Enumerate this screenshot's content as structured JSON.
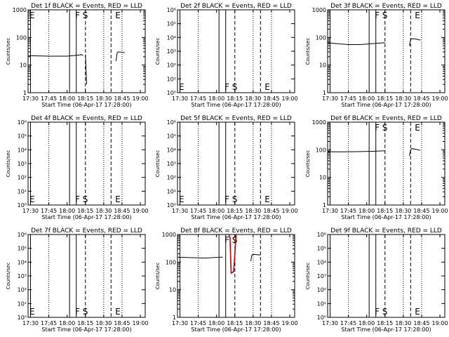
{
  "figure": {
    "x_tick_labels": [
      "17:30",
      "17:45",
      "18:00",
      "18:15",
      "18:30",
      "18:45",
      "19:00"
    ],
    "xlabel": "Start Time (06-Apr-17 17:28:00)",
    "ylabel": "Counts/sec",
    "log_ticks_a": [
      "1",
      "10",
      "100",
      "1000"
    ],
    "log_ticks_b": [
      "10⁰",
      "10¹",
      "10²",
      "10³",
      "10⁴",
      "10⁵",
      "10⁶"
    ],
    "marker_labels": [
      "E",
      "F",
      "S",
      "E"
    ],
    "colors": {
      "events": "#000000",
      "lld": "#cc0000"
    }
  },
  "chart_data": [
    {
      "title": "Det 1f BLACK = Events, RED = LLD",
      "type": "line",
      "x_range": [
        "17:30",
        "19:00"
      ],
      "yscale": "log",
      "ylim": [
        1,
        1000
      ],
      "marker_labels_shown": [
        "E",
        "F",
        "S",
        "E"
      ],
      "series": [
        {
          "name": "Events",
          "color": "#000000",
          "x": [
            "17:28",
            "17:45",
            "18:00",
            "18:05",
            "18:10",
            "18:12",
            "18:13"
          ],
          "values": [
            22,
            21,
            21,
            22,
            23,
            24,
            22
          ]
        },
        {
          "name": "Events",
          "color": "#000000",
          "x": [
            "18:15",
            "18:16"
          ],
          "values": [
            24,
            2
          ]
        },
        {
          "name": "Events",
          "color": "#000000",
          "x": [
            "18:40",
            "18:41",
            "18:42",
            "18:45",
            "18:47"
          ],
          "values": [
            14,
            28,
            30,
            29,
            28
          ]
        }
      ]
    },
    {
      "title": "Det 2f BLACK = Events, RED = LLD",
      "type": "line",
      "x_range": [
        "17:30",
        "19:00"
      ],
      "yscale": "log",
      "ylim": [
        1,
        1000000
      ],
      "marker_labels_shown": [
        "E",
        "F",
        "S",
        "E"
      ],
      "series": []
    },
    {
      "title": "Det 3f BLACK = Events, RED = LLD",
      "type": "line",
      "x_range": [
        "17:30",
        "19:00"
      ],
      "yscale": "log",
      "ylim": [
        1,
        1000
      ],
      "marker_labels_shown": [
        "F",
        "S",
        "E"
      ],
      "series": [
        {
          "name": "Events",
          "color": "#000000",
          "x": [
            "17:28",
            "17:35",
            "17:45",
            "17:55",
            "18:05",
            "18:15"
          ],
          "values": [
            65,
            60,
            55,
            55,
            60,
            65
          ]
        },
        {
          "name": "Events",
          "color": "#000000",
          "x": [
            "18:35",
            "18:36",
            "18:37",
            "18:40",
            "18:44"
          ],
          "values": [
            50,
            85,
            90,
            88,
            80
          ]
        }
      ]
    },
    {
      "title": "Det 4f BLACK = Events, RED = LLD",
      "type": "line",
      "x_range": [
        "17:30",
        "19:00"
      ],
      "yscale": "log",
      "ylim": [
        1,
        1000000
      ],
      "marker_labels_shown": [
        "E",
        "F",
        "S",
        "E"
      ],
      "series": []
    },
    {
      "title": "Det 5f BLACK = Events, RED = LLD",
      "type": "line",
      "x_range": [
        "17:30",
        "19:00"
      ],
      "yscale": "log",
      "ylim": [
        1,
        1000000
      ],
      "marker_labels_shown": [
        "E",
        "F",
        "S",
        "E"
      ],
      "series": []
    },
    {
      "title": "Det 6f BLACK = Events, RED = LLD",
      "type": "line",
      "x_range": [
        "17:30",
        "19:00"
      ],
      "yscale": "log",
      "ylim": [
        1,
        1000
      ],
      "marker_labels_shown": [
        "F",
        "S",
        "E"
      ],
      "series": [
        {
          "name": "Events",
          "color": "#000000",
          "x": [
            "17:28",
            "17:40",
            "17:55",
            "18:05",
            "18:15"
          ],
          "values": [
            85,
            84,
            86,
            88,
            92
          ]
        },
        {
          "name": "Events",
          "color": "#000000",
          "x": [
            "18:35",
            "18:36",
            "18:37",
            "18:40",
            "18:44"
          ],
          "values": [
            60,
            100,
            110,
            105,
            95
          ]
        }
      ]
    },
    {
      "title": "Det 7f BLACK = Events, RED = LLD",
      "type": "line",
      "x_range": [
        "17:30",
        "19:00"
      ],
      "yscale": "log",
      "ylim": [
        1,
        1000000
      ],
      "marker_labels_shown": [
        "E",
        "F",
        "S",
        "E"
      ],
      "series": []
    },
    {
      "title": "Det 8f BLACK = Events, RED = LLD",
      "type": "line",
      "x_range": [
        "17:30",
        "19:00"
      ],
      "yscale": "log",
      "ylim": [
        1,
        1000
      ],
      "marker_labels_shown": [
        "F",
        "S"
      ],
      "series": [
        {
          "name": "Events",
          "color": "#000000",
          "x": [
            "17:28",
            "17:40",
            "17:50",
            "18:00",
            "18:05"
          ],
          "values": [
            150,
            145,
            140,
            148,
            152
          ]
        },
        {
          "name": "LLD",
          "color": "#cc0000",
          "x": [
            "18:10",
            "18:11",
            "18:12",
            "18:14",
            "18:15",
            "18:16"
          ],
          "values": [
            1000,
            800,
            40,
            45,
            200,
            1000
          ]
        },
        {
          "name": "Events",
          "color": "#000000",
          "x": [
            "18:28",
            "18:29",
            "18:30",
            "18:33",
            "18:36"
          ],
          "values": [
            110,
            180,
            190,
            185,
            180
          ]
        }
      ]
    },
    {
      "title": "Det 9f BLACK = Events, RED = LLD",
      "type": "line",
      "x_range": [
        "17:30",
        "19:00"
      ],
      "yscale": "log",
      "ylim": [
        1,
        1000000
      ],
      "marker_labels_shown": [
        "F",
        "S",
        "E"
      ],
      "series": []
    }
  ]
}
